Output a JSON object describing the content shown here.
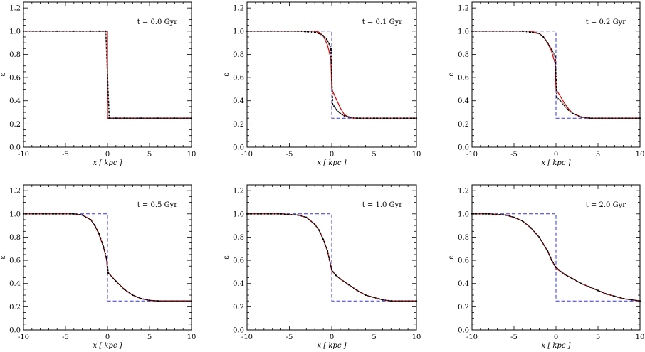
{
  "chart_data": [
    {
      "type": "line",
      "annotation": "t = 0.0 Gyr",
      "xlabel": "x  [ kpc ]",
      "ylabel": "ε",
      "xlim": [
        -10,
        10
      ],
      "ylim": [
        0,
        1.25
      ],
      "xticks": [
        "-10",
        "-5",
        "0",
        "5",
        "10"
      ],
      "yticks": [
        "0.0",
        "0.2",
        "0.4",
        "0.6",
        "0.8",
        "1.0",
        "1.2"
      ],
      "series": [
        {
          "role": "initial",
          "color": "#3333dd",
          "dash": true,
          "x": [
            -10,
            0,
            0,
            10
          ],
          "y": [
            1.0,
            1.0,
            0.25,
            0.25
          ]
        },
        {
          "role": "analytic",
          "color": "#dd0000",
          "x": [
            -10,
            0,
            0,
            10
          ],
          "y": [
            1.0,
            1.0,
            0.25,
            0.25
          ]
        },
        {
          "role": "simulation",
          "color": "#000000",
          "x": [
            -10,
            -8,
            -6,
            -4,
            -2,
            -1,
            -0.2,
            0.2,
            1,
            2,
            4,
            6,
            8,
            10
          ],
          "y": [
            1.0,
            1.0,
            1.0,
            1.0,
            1.0,
            1.0,
            1.0,
            0.25,
            0.25,
            0.25,
            0.25,
            0.25,
            0.25,
            0.25
          ]
        }
      ]
    },
    {
      "type": "line",
      "annotation": "t = 0.1 Gyr",
      "xlabel": "x  [ kpc ]",
      "ylabel": "ε",
      "xlim": [
        -10,
        10
      ],
      "ylim": [
        0,
        1.25
      ],
      "xticks": [
        "-10",
        "-5",
        "0",
        "5",
        "10"
      ],
      "yticks": [
        "0.0",
        "0.2",
        "0.4",
        "0.6",
        "0.8",
        "1.0",
        "1.2"
      ],
      "series": [
        {
          "role": "initial",
          "color": "#3333dd",
          "dash": true,
          "x": [
            -10,
            0,
            0,
            10
          ],
          "y": [
            1.0,
            1.0,
            0.25,
            0.25
          ]
        },
        {
          "role": "analytic",
          "color": "#dd0000",
          "x": [
            -10,
            -2,
            -1.5,
            -1,
            -0.5,
            -0.1,
            0,
            0.5,
            1,
            1.5,
            2,
            2.5,
            3,
            10
          ],
          "y": [
            1.0,
            1.0,
            0.99,
            0.96,
            0.88,
            0.76,
            0.5,
            0.42,
            0.34,
            0.28,
            0.26,
            0.25,
            0.25,
            0.25
          ]
        },
        {
          "role": "simulation",
          "color": "#000000",
          "x": [
            -10,
            -4,
            -2,
            -1.5,
            -1,
            -0.6,
            -0.3,
            -0.1,
            0.1,
            0.3,
            0.6,
            1,
            1.5,
            2,
            3,
            5,
            10
          ],
          "y": [
            1.0,
            1.0,
            0.99,
            0.98,
            0.96,
            0.93,
            0.89,
            0.85,
            0.37,
            0.35,
            0.32,
            0.29,
            0.27,
            0.26,
            0.25,
            0.25,
            0.25
          ]
        }
      ]
    },
    {
      "type": "line",
      "annotation": "t = 0.2 Gyr",
      "xlabel": "x  [ kpc ]",
      "ylabel": "ε",
      "xlim": [
        -10,
        10
      ],
      "ylim": [
        0,
        1.25
      ],
      "xticks": [
        "-10",
        "-5",
        "0",
        "5",
        "10"
      ],
      "yticks": [
        "0.0",
        "0.2",
        "0.4",
        "0.6",
        "0.8",
        "1.0",
        "1.2"
      ],
      "series": [
        {
          "role": "initial",
          "color": "#3333dd",
          "dash": true,
          "x": [
            -10,
            0,
            0,
            10
          ],
          "y": [
            1.0,
            1.0,
            0.25,
            0.25
          ]
        },
        {
          "role": "analytic",
          "color": "#dd0000",
          "x": [
            -10,
            -3,
            -2,
            -1.5,
            -1,
            -0.5,
            -0.1,
            0,
            0.5,
            1,
            1.5,
            2,
            3,
            4,
            10
          ],
          "y": [
            1.0,
            1.0,
            0.98,
            0.95,
            0.9,
            0.82,
            0.72,
            0.5,
            0.44,
            0.38,
            0.33,
            0.29,
            0.26,
            0.25,
            0.25
          ]
        },
        {
          "role": "simulation",
          "color": "#000000",
          "x": [
            -10,
            -4,
            -2,
            -1.5,
            -1,
            -0.5,
            -0.1,
            0.1,
            0.5,
            1,
            1.5,
            2,
            3,
            4,
            10
          ],
          "y": [
            1.0,
            1.0,
            0.98,
            0.95,
            0.9,
            0.84,
            0.78,
            0.43,
            0.4,
            0.36,
            0.32,
            0.29,
            0.26,
            0.25,
            0.25
          ]
        }
      ]
    },
    {
      "type": "line",
      "annotation": "t = 0.5 Gyr",
      "xlabel": "x  [ kpc ]",
      "ylabel": "ε",
      "xlim": [
        -10,
        10
      ],
      "ylim": [
        0,
        1.25
      ],
      "xticks": [
        "-10",
        "-5",
        "0",
        "5",
        "10"
      ],
      "yticks": [
        "0.0",
        "0.2",
        "0.4",
        "0.6",
        "0.8",
        "1.0",
        "1.2"
      ],
      "series": [
        {
          "role": "initial",
          "color": "#3333dd",
          "dash": true,
          "x": [
            -10,
            0,
            0,
            10
          ],
          "y": [
            1.0,
            1.0,
            0.25,
            0.25
          ]
        },
        {
          "role": "analytic",
          "color": "#dd0000",
          "x": [
            -10,
            -4,
            -3,
            -2,
            -1.5,
            -1,
            -0.5,
            -0.1,
            0,
            0.5,
            1,
            2,
            3,
            4,
            5,
            6,
            10
          ],
          "y": [
            1.0,
            1.0,
            0.99,
            0.95,
            0.9,
            0.82,
            0.72,
            0.6,
            0.5,
            0.46,
            0.42,
            0.35,
            0.3,
            0.27,
            0.255,
            0.25,
            0.25
          ]
        },
        {
          "role": "simulation",
          "color": "#000000",
          "x": [
            -10,
            -4,
            -3,
            -2,
            -1.5,
            -1,
            -0.5,
            -0.1,
            0.1,
            0.5,
            1,
            2,
            3,
            4,
            5,
            6,
            10
          ],
          "y": [
            1.0,
            1.0,
            0.99,
            0.95,
            0.9,
            0.83,
            0.72,
            0.62,
            0.49,
            0.46,
            0.42,
            0.35,
            0.3,
            0.27,
            0.255,
            0.25,
            0.25
          ]
        }
      ]
    },
    {
      "type": "line",
      "annotation": "t = 1.0 Gyr",
      "xlabel": "x  [ kpc ]",
      "ylabel": "ε",
      "xlim": [
        -10,
        10
      ],
      "ylim": [
        0,
        1.25
      ],
      "xticks": [
        "-10",
        "-5",
        "0",
        "5",
        "10"
      ],
      "yticks": [
        "0.0",
        "0.2",
        "0.4",
        "0.6",
        "0.8",
        "1.0",
        "1.2"
      ],
      "series": [
        {
          "role": "initial",
          "color": "#3333dd",
          "dash": true,
          "x": [
            -10,
            0,
            0,
            10
          ],
          "y": [
            1.0,
            1.0,
            0.25,
            0.25
          ]
        },
        {
          "role": "analytic",
          "color": "#dd0000",
          "x": [
            -10,
            -6,
            -4,
            -3,
            -2,
            -1.5,
            -1,
            -0.5,
            0,
            0.5,
            1,
            2,
            3,
            4,
            5,
            6,
            7,
            10
          ],
          "y": [
            1.0,
            1.0,
            0.99,
            0.97,
            0.91,
            0.86,
            0.78,
            0.68,
            0.51,
            0.47,
            0.44,
            0.39,
            0.34,
            0.3,
            0.28,
            0.26,
            0.25,
            0.25
          ]
        },
        {
          "role": "simulation",
          "color": "#000000",
          "x": [
            -10,
            -6,
            -4,
            -3,
            -2,
            -1.5,
            -1,
            -0.5,
            0,
            0.5,
            1,
            2,
            3,
            4,
            5,
            6,
            7,
            10
          ],
          "y": [
            1.0,
            1.0,
            0.99,
            0.97,
            0.91,
            0.86,
            0.78,
            0.68,
            0.52,
            0.47,
            0.44,
            0.39,
            0.34,
            0.3,
            0.28,
            0.26,
            0.25,
            0.25
          ]
        }
      ]
    },
    {
      "type": "line",
      "annotation": "t = 2.0 Gyr",
      "xlabel": "x  [ kpc ]",
      "ylabel": "ε",
      "xlim": [
        -10,
        10
      ],
      "ylim": [
        0,
        1.25
      ],
      "xticks": [
        "-10",
        "-5",
        "0",
        "5",
        "10"
      ],
      "yticks": [
        "0.0",
        "0.2",
        "0.4",
        "0.6",
        "0.8",
        "1.0",
        "1.2"
      ],
      "series": [
        {
          "role": "initial",
          "color": "#3333dd",
          "dash": true,
          "x": [
            -10,
            0,
            0,
            10
          ],
          "y": [
            1.0,
            1.0,
            0.25,
            0.25
          ]
        },
        {
          "role": "analytic",
          "color": "#dd0000",
          "x": [
            -10,
            -8,
            -6,
            -5,
            -4,
            -3,
            -2,
            -1,
            -0.5,
            0,
            1,
            2,
            3,
            4,
            5,
            6,
            7,
            8,
            9,
            10
          ],
          "y": [
            1.0,
            1.0,
            0.99,
            0.97,
            0.94,
            0.88,
            0.8,
            0.68,
            0.6,
            0.53,
            0.48,
            0.44,
            0.4,
            0.37,
            0.34,
            0.31,
            0.29,
            0.27,
            0.26,
            0.25
          ]
        },
        {
          "role": "simulation",
          "color": "#000000",
          "x": [
            -10,
            -8,
            -6,
            -5,
            -4,
            -3,
            -2,
            -1,
            -0.5,
            0,
            1,
            2,
            3,
            4,
            5,
            6,
            7,
            8,
            9,
            10
          ],
          "y": [
            1.0,
            1.0,
            0.99,
            0.97,
            0.94,
            0.88,
            0.8,
            0.68,
            0.6,
            0.54,
            0.48,
            0.44,
            0.4,
            0.37,
            0.34,
            0.31,
            0.29,
            0.27,
            0.26,
            0.25
          ]
        }
      ]
    }
  ]
}
